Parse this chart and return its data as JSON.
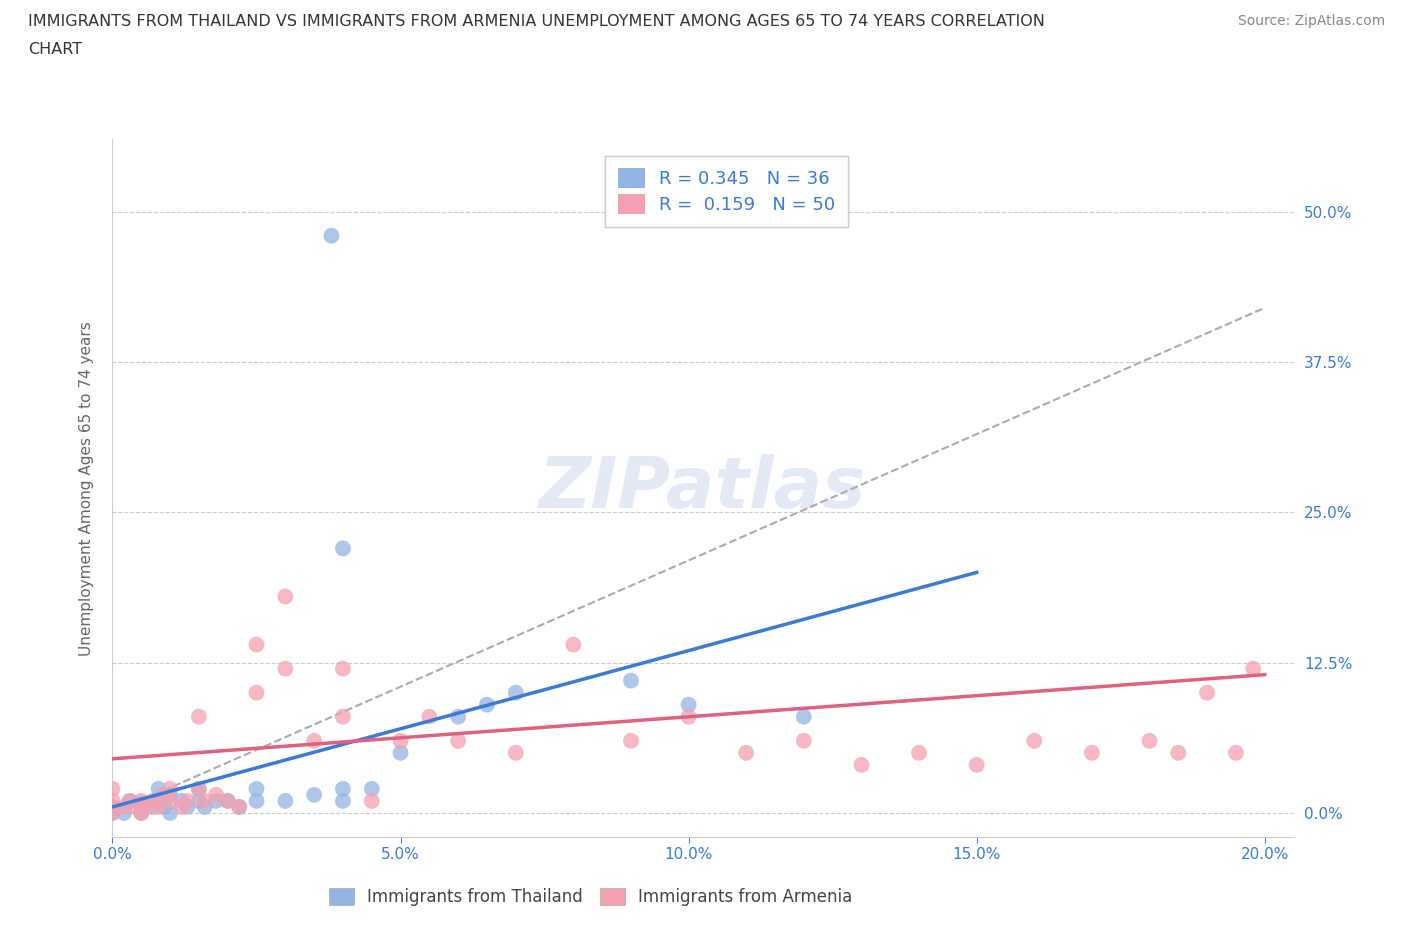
{
  "title_line1": "IMMIGRANTS FROM THAILAND VS IMMIGRANTS FROM ARMENIA UNEMPLOYMENT AMONG AGES 65 TO 74 YEARS CORRELATION",
  "title_line2": "CHART",
  "source": "Source: ZipAtlas.com",
  "ylabel": "Unemployment Among Ages 65 to 74 years",
  "color_thailand": "#92b4e3",
  "color_armenia": "#f4a0b0",
  "line_color_thailand": "#3a7bd5",
  "line_color_armenia": "#e0607e",
  "R_thailand": 0.345,
  "N_thailand": 36,
  "R_armenia": 0.159,
  "N_armenia": 50,
  "xlim": [
    0.0,
    0.205
  ],
  "ylim": [
    -0.02,
    0.56
  ],
  "yticks": [
    0.0,
    0.125,
    0.25,
    0.375,
    0.5
  ],
  "xticks": [
    0.0,
    0.05,
    0.1,
    0.15,
    0.2
  ],
  "watermark_text": "ZIPatlas",
  "thailand_scatter_x": [
    0.0,
    0.0,
    0.002,
    0.003,
    0.005,
    0.005,
    0.007,
    0.008,
    0.008,
    0.009,
    0.01,
    0.01,
    0.012,
    0.013,
    0.015,
    0.015,
    0.016,
    0.018,
    0.02,
    0.022,
    0.025,
    0.025,
    0.03,
    0.035,
    0.04,
    0.04,
    0.045,
    0.05,
    0.06,
    0.065,
    0.07,
    0.09,
    0.1,
    0.12,
    0.04,
    0.038
  ],
  "thailand_scatter_y": [
    0.0,
    0.005,
    0.0,
    0.01,
    0.0,
    0.008,
    0.005,
    0.01,
    0.02,
    0.005,
    0.0,
    0.015,
    0.01,
    0.005,
    0.01,
    0.02,
    0.005,
    0.01,
    0.01,
    0.005,
    0.01,
    0.02,
    0.01,
    0.015,
    0.01,
    0.02,
    0.02,
    0.05,
    0.08,
    0.09,
    0.1,
    0.11,
    0.09,
    0.08,
    0.22,
    0.48
  ],
  "armenia_scatter_x": [
    0.0,
    0.0,
    0.0,
    0.0,
    0.002,
    0.003,
    0.004,
    0.005,
    0.005,
    0.006,
    0.007,
    0.008,
    0.009,
    0.01,
    0.01,
    0.012,
    0.013,
    0.015,
    0.015,
    0.016,
    0.018,
    0.02,
    0.022,
    0.025,
    0.025,
    0.03,
    0.03,
    0.035,
    0.04,
    0.04,
    0.045,
    0.05,
    0.055,
    0.06,
    0.07,
    0.08,
    0.09,
    0.1,
    0.11,
    0.12,
    0.13,
    0.14,
    0.15,
    0.16,
    0.17,
    0.18,
    0.185,
    0.19,
    0.195,
    0.198
  ],
  "armenia_scatter_y": [
    0.0,
    0.005,
    0.01,
    0.02,
    0.005,
    0.01,
    0.005,
    0.0,
    0.01,
    0.005,
    0.01,
    0.005,
    0.015,
    0.01,
    0.02,
    0.005,
    0.01,
    0.02,
    0.08,
    0.01,
    0.015,
    0.01,
    0.005,
    0.1,
    0.14,
    0.18,
    0.12,
    0.06,
    0.08,
    0.12,
    0.01,
    0.06,
    0.08,
    0.06,
    0.05,
    0.14,
    0.06,
    0.08,
    0.05,
    0.06,
    0.04,
    0.05,
    0.04,
    0.06,
    0.05,
    0.06,
    0.05,
    0.1,
    0.05,
    0.12
  ],
  "thailand_line_x": [
    0.0,
    0.15
  ],
  "thailand_line_y": [
    0.005,
    0.2
  ],
  "armenia_line_x": [
    0.0,
    0.2
  ],
  "armenia_line_y": [
    0.045,
    0.115
  ],
  "dash_line_x": [
    0.0,
    0.2
  ],
  "dash_line_y": [
    0.0,
    0.42
  ]
}
